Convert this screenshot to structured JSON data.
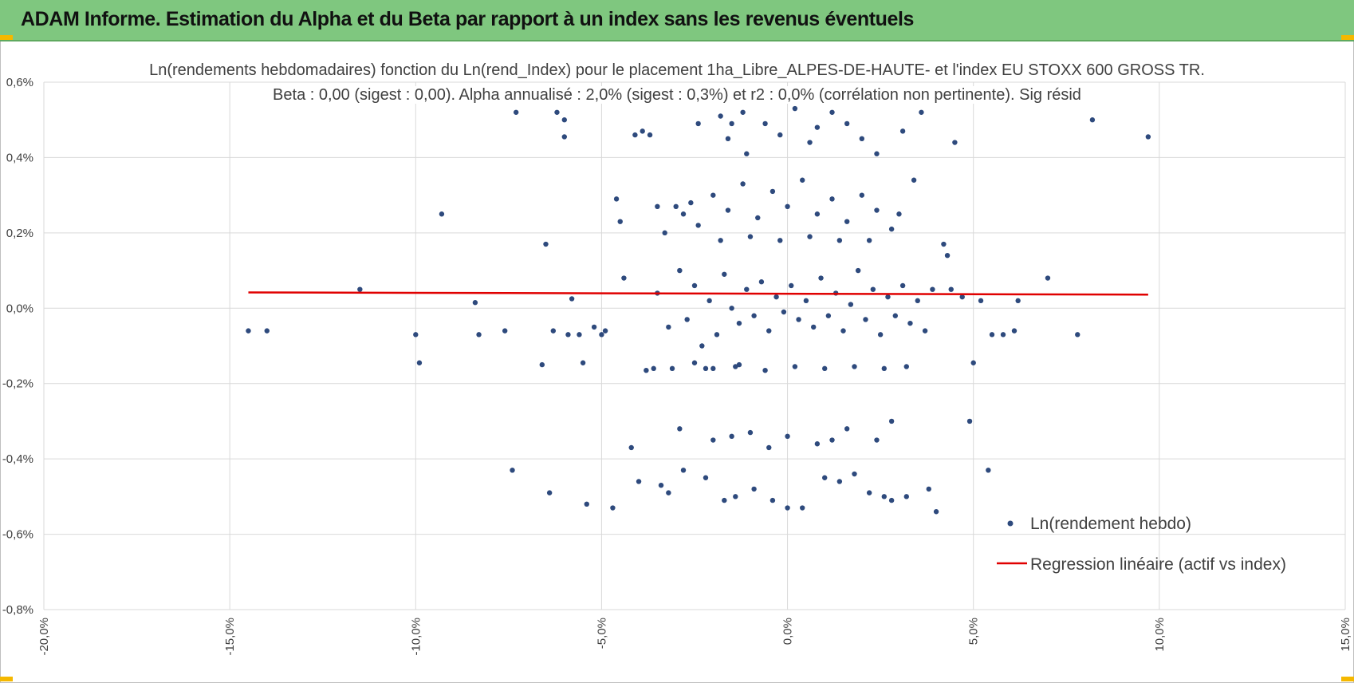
{
  "header": {
    "title": "ADAM Informe. Estimation du Alpha et du Beta par rapport à un index sans les revenus éventuels",
    "background_color": "#7fc77f",
    "corner_color": "#f5b800"
  },
  "chart_data": {
    "type": "scatter",
    "title": "Ln(rendements hebdomadaires) fonction du Ln(rend_Index) pour le placement 1ha_Libre_ALPES-DE-HAUTE- et l'index EU STOXX 600 GROSS TR.",
    "subtitle": "Beta : 0,00 (sigest : 0,00).  Alpha annualisé : 2,0% (sigest : 0,3%) et r2 : 0,0% (corrélation non pertinente). Sig résid",
    "xlim": [
      -20,
      15
    ],
    "ylim": [
      -0.8,
      0.6
    ],
    "x_ticks": [
      "-20,0%",
      "-15,0%",
      "-10,0%",
      "-5,0%",
      "0,0%",
      "5,0%",
      "10,0%",
      "15,0%"
    ],
    "y_ticks": [
      "-0,8%",
      "-0,6%",
      "-0,4%",
      "-0,2%",
      "0,0%",
      "0,2%",
      "0,4%",
      "0,6%"
    ],
    "grid": true,
    "legend_position": "bottom-right",
    "series": [
      {
        "name": "Ln(rendement hebdo)",
        "kind": "scatter",
        "color": "#2e4a7d",
        "points": [
          [
            -14.5,
            -0.06
          ],
          [
            -14.0,
            -0.06
          ],
          [
            -11.5,
            0.05
          ],
          [
            -10.0,
            -0.07
          ],
          [
            -9.9,
            -0.145
          ],
          [
            -9.3,
            0.25
          ],
          [
            -8.4,
            0.015
          ],
          [
            -8.3,
            -0.07
          ],
          [
            -7.6,
            -0.06
          ],
          [
            -7.4,
            -0.43
          ],
          [
            -7.3,
            0.52
          ],
          [
            -6.6,
            -0.15
          ],
          [
            -6.5,
            0.17
          ],
          [
            -6.4,
            -0.49
          ],
          [
            -6.3,
            -0.06
          ],
          [
            -6.2,
            0.52
          ],
          [
            -6.0,
            0.5
          ],
          [
            -6.0,
            0.455
          ],
          [
            -5.9,
            -0.07
          ],
          [
            -5.8,
            0.025
          ],
          [
            -5.6,
            -0.07
          ],
          [
            -5.5,
            -0.145
          ],
          [
            -5.4,
            -0.52
          ],
          [
            -5.2,
            -0.05
          ],
          [
            -5.0,
            -0.07
          ],
          [
            -4.9,
            -0.06
          ],
          [
            -4.7,
            -0.53
          ],
          [
            -4.6,
            0.29
          ],
          [
            -4.5,
            0.23
          ],
          [
            -4.4,
            0.08
          ],
          [
            -4.2,
            -0.37
          ],
          [
            -4.1,
            0.46
          ],
          [
            -4.0,
            -0.46
          ],
          [
            -3.9,
            0.47
          ],
          [
            -3.8,
            -0.165
          ],
          [
            -3.7,
            0.46
          ],
          [
            -3.6,
            -0.16
          ],
          [
            -3.5,
            0.27
          ],
          [
            -3.4,
            -0.47
          ],
          [
            -3.3,
            0.2
          ],
          [
            -3.2,
            -0.49
          ],
          [
            -3.1,
            -0.16
          ],
          [
            -3.0,
            0.27
          ],
          [
            -2.9,
            -0.32
          ],
          [
            -2.8,
            -0.43
          ],
          [
            -2.6,
            0.28
          ],
          [
            -2.5,
            -0.145
          ],
          [
            -2.4,
            0.49
          ],
          [
            -2.2,
            -0.45
          ],
          [
            -2.0,
            -0.16
          ],
          [
            -1.8,
            0.51
          ],
          [
            -1.7,
            -0.51
          ],
          [
            -1.6,
            0.45
          ],
          [
            -1.5,
            0.49
          ],
          [
            -1.4,
            -0.5
          ],
          [
            -1.3,
            -0.15
          ],
          [
            -1.2,
            0.52
          ],
          [
            -1.1,
            0.41
          ],
          [
            -0.9,
            -0.48
          ],
          [
            -0.6,
            0.49
          ],
          [
            -0.4,
            -0.51
          ],
          [
            -0.2,
            0.46
          ],
          [
            0.0,
            -0.53
          ],
          [
            0.2,
            0.53
          ],
          [
            0.4,
            -0.53
          ],
          [
            0.6,
            0.44
          ],
          [
            0.8,
            0.48
          ],
          [
            1.0,
            -0.45
          ],
          [
            1.2,
            0.52
          ],
          [
            1.4,
            -0.46
          ],
          [
            1.6,
            0.49
          ],
          [
            1.8,
            -0.44
          ],
          [
            2.0,
            0.45
          ],
          [
            2.2,
            -0.49
          ],
          [
            2.4,
            0.41
          ],
          [
            2.6,
            -0.5
          ],
          [
            2.8,
            -0.51
          ],
          [
            3.1,
            0.47
          ],
          [
            3.2,
            -0.5
          ],
          [
            3.4,
            0.34
          ],
          [
            3.6,
            0.52
          ],
          [
            3.8,
            -0.48
          ],
          [
            4.0,
            -0.54
          ],
          [
            4.2,
            0.17
          ],
          [
            4.3,
            0.14
          ],
          [
            4.4,
            0.05
          ],
          [
            4.5,
            0.44
          ],
          [
            4.7,
            0.03
          ],
          [
            4.9,
            -0.3
          ],
          [
            5.0,
            -0.145
          ],
          [
            5.2,
            0.02
          ],
          [
            5.4,
            -0.43
          ],
          [
            5.5,
            -0.07
          ],
          [
            5.8,
            -0.07
          ],
          [
            6.1,
            -0.06
          ],
          [
            6.2,
            0.02
          ],
          [
            7.0,
            0.08
          ],
          [
            7.8,
            -0.07
          ],
          [
            8.2,
            0.5
          ],
          [
            9.7,
            0.455
          ],
          [
            -3.5,
            0.04
          ],
          [
            -3.2,
            -0.05
          ],
          [
            -2.9,
            0.1
          ],
          [
            -2.7,
            -0.03
          ],
          [
            -2.5,
            0.06
          ],
          [
            -2.3,
            -0.1
          ],
          [
            -2.1,
            0.02
          ],
          [
            -1.9,
            -0.07
          ],
          [
            -1.7,
            0.09
          ],
          [
            -1.5,
            0.0
          ],
          [
            -1.3,
            -0.04
          ],
          [
            -1.1,
            0.05
          ],
          [
            -0.9,
            -0.02
          ],
          [
            -0.7,
            0.07
          ],
          [
            -0.5,
            -0.06
          ],
          [
            -0.3,
            0.03
          ],
          [
            -0.1,
            -0.01
          ],
          [
            0.1,
            0.06
          ],
          [
            0.3,
            -0.03
          ],
          [
            0.5,
            0.02
          ],
          [
            0.7,
            -0.05
          ],
          [
            0.9,
            0.08
          ],
          [
            1.1,
            -0.02
          ],
          [
            1.3,
            0.04
          ],
          [
            1.5,
            -0.06
          ],
          [
            1.7,
            0.01
          ],
          [
            1.9,
            0.1
          ],
          [
            2.1,
            -0.03
          ],
          [
            2.3,
            0.05
          ],
          [
            2.5,
            -0.07
          ],
          [
            2.7,
            0.03
          ],
          [
            2.9,
            -0.02
          ],
          [
            3.1,
            0.06
          ],
          [
            3.3,
            -0.04
          ],
          [
            3.5,
            0.02
          ],
          [
            3.7,
            -0.06
          ],
          [
            3.9,
            0.05
          ],
          [
            -2.8,
            0.25
          ],
          [
            -2.4,
            0.22
          ],
          [
            -2.0,
            0.3
          ],
          [
            -1.6,
            0.26
          ],
          [
            -1.2,
            0.33
          ],
          [
            -0.8,
            0.24
          ],
          [
            -0.4,
            0.31
          ],
          [
            0.0,
            0.27
          ],
          [
            0.4,
            0.34
          ],
          [
            0.8,
            0.25
          ],
          [
            1.2,
            0.29
          ],
          [
            1.6,
            0.23
          ],
          [
            2.0,
            0.3
          ],
          [
            2.4,
            0.26
          ],
          [
            2.8,
            0.21
          ],
          [
            -1.8,
            0.18
          ],
          [
            -1.0,
            0.19
          ],
          [
            -0.2,
            0.18
          ],
          [
            0.6,
            0.19
          ],
          [
            1.4,
            0.18
          ],
          [
            2.2,
            0.18
          ],
          [
            3.0,
            0.25
          ],
          [
            -2.2,
            -0.16
          ],
          [
            -1.4,
            -0.155
          ],
          [
            -0.6,
            -0.165
          ],
          [
            0.2,
            -0.155
          ],
          [
            1.0,
            -0.16
          ],
          [
            1.8,
            -0.155
          ],
          [
            2.6,
            -0.16
          ],
          [
            3.2,
            -0.155
          ],
          [
            -2.0,
            -0.35
          ],
          [
            -1.0,
            -0.33
          ],
          [
            0.0,
            -0.34
          ],
          [
            0.8,
            -0.36
          ],
          [
            1.6,
            -0.32
          ],
          [
            2.4,
            -0.35
          ],
          [
            2.8,
            -0.3
          ],
          [
            -0.5,
            -0.37
          ],
          [
            1.2,
            -0.35
          ],
          [
            -1.5,
            -0.34
          ]
        ]
      },
      {
        "name": "Regression linéaire (actif vs index)",
        "kind": "line",
        "color": "#e00000",
        "points": [
          [
            -14.5,
            0.042
          ],
          [
            9.7,
            0.036
          ]
        ]
      }
    ]
  }
}
